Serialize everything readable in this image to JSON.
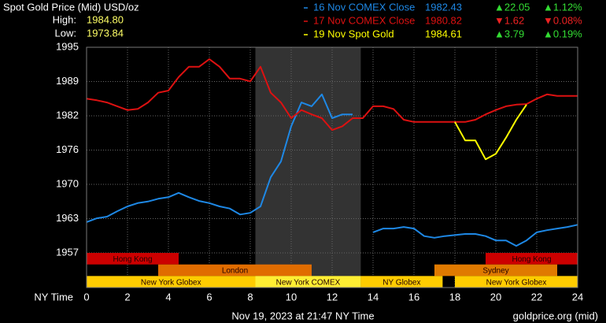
{
  "chart_data": {
    "type": "line",
    "title": "Spot Gold Price (Mid) USD/oz",
    "high_label": "High:",
    "high": "1984.80",
    "low_label": "Low:",
    "low": "1973.84",
    "x_label": "NY Time",
    "footer": "Nov 19, 2023 at 21:47 NY Time",
    "source": "goldprice.org (mid)",
    "xlim": [
      0,
      24
    ],
    "xticks": [
      0,
      2,
      4,
      6,
      8,
      10,
      12,
      14,
      16,
      18,
      20,
      22,
      24
    ],
    "ylim": [
      1950.6,
      1995
    ],
    "yticks": [
      1957,
      {
        "value": 1963.33,
        "label": "1963"
      },
      {
        "value": 1969.67,
        "label": "1970"
      },
      1976,
      {
        "value": 1982.33,
        "label": "1982"
      },
      {
        "value": 1988.67,
        "label": "1989"
      },
      1995
    ],
    "grid": true,
    "x": [
      0,
      0.5,
      1,
      1.5,
      2,
      2.5,
      3,
      3.5,
      4,
      4.5,
      5,
      5.5,
      6,
      6.5,
      7,
      7.5,
      8,
      8.5,
      9,
      9.5,
      10,
      10.5,
      11,
      11.5,
      12,
      12.5,
      13,
      13.5,
      14,
      14.5,
      15,
      15.5,
      16,
      16.5,
      17,
      17.5,
      18,
      18.5,
      19,
      19.5,
      20,
      20.5,
      21,
      21.5,
      22,
      22.5,
      23,
      23.5,
      24
    ],
    "shade": {
      "start": 8.25,
      "end": 13.4,
      "color": "#333333"
    },
    "series": [
      {
        "name": "16 Nov COMEX Close",
        "color": "#1e88e5",
        "price": "1982.43",
        "change": {
          "text": "▲22.05",
          "color": "#33dd33"
        },
        "change_pct": {
          "text": "▲1.12%",
          "color": "#33dd33"
        },
        "values": [
          1962.7,
          1963.4,
          1963.7,
          1964.7,
          1965.6,
          1966.2,
          1966.5,
          1967.0,
          1967.3,
          1968.1,
          1967.3,
          1966.6,
          1966.2,
          1965.6,
          1965.2,
          1964.1,
          1964.4,
          1965.6,
          1971.0,
          1973.9,
          1980.4,
          1984.8,
          1984.1,
          1986.3,
          1981.9,
          1982.6,
          1982.6,
          null,
          1960.8,
          1961.5,
          1961.5,
          1961.8,
          1961.5,
          1960.1,
          1959.8,
          1960.1,
          1960.3,
          1960.5,
          1960.5,
          1960.1,
          1959.3,
          1959.3,
          1958.3,
          1959.3,
          1960.8,
          1961.2,
          1961.5,
          1961.8,
          1962.2
        ]
      },
      {
        "name": "17 Nov COMEX Close",
        "color": "#dd1111",
        "price": "1980.82",
        "change": {
          "text": "▼1.62",
          "color": "#ee2222"
        },
        "change_pct": {
          "text": "▼0.08%",
          "color": "#ee2222"
        },
        "values": [
          1985.5,
          1985.2,
          1984.8,
          1984.1,
          1983.4,
          1983.6,
          1984.8,
          1986.6,
          1987.0,
          1989.5,
          1991.4,
          1991.4,
          1992.8,
          1991.4,
          1989.2,
          1989.2,
          1988.7,
          1991.4,
          1986.6,
          1984.8,
          1981.9,
          1983.4,
          1982.6,
          1981.9,
          1979.7,
          1980.4,
          1981.9,
          1981.9,
          1984.1,
          1984.1,
          1983.6,
          1981.6,
          1981.2,
          1981.2,
          1981.2,
          1981.2,
          1981.2,
          1981.2,
          1981.6,
          1982.6,
          1983.4,
          1984.1,
          1984.4,
          1984.5,
          1985.5,
          1986.3,
          1986.0,
          1986.0,
          1986.0
        ]
      },
      {
        "name": "19 Nov Spot Gold",
        "color": "#ffff00",
        "price": "1984.61",
        "change": {
          "text": "▲3.79",
          "color": "#33dd33"
        },
        "change_pct": {
          "text": "▲0.19%",
          "color": "#33dd33"
        },
        "values": [
          null,
          null,
          null,
          null,
          null,
          null,
          null,
          null,
          null,
          null,
          null,
          null,
          null,
          null,
          null,
          null,
          null,
          null,
          null,
          null,
          null,
          null,
          null,
          null,
          null,
          null,
          null,
          null,
          null,
          null,
          null,
          null,
          null,
          null,
          null,
          null,
          1981.2,
          1977.8,
          1977.8,
          1974.3,
          1975.3,
          1978.3,
          1981.6,
          1984.4,
          null,
          null,
          null,
          null,
          null
        ]
      }
    ],
    "session_rows": [
      [
        {
          "label": "Hong Kong",
          "start": 0,
          "end": 4.5,
          "color": "#cc0000"
        },
        {
          "label": "Hong Kong",
          "start": 19.5,
          "end": 24,
          "color": "#cc0000"
        }
      ],
      [
        {
          "label": "London",
          "start": 3.5,
          "end": 11,
          "color": "#e06c00"
        },
        {
          "label": "Sydney",
          "start": 17,
          "end": 23,
          "color": "#e07a00"
        }
      ],
      [
        {
          "label": "New York Globex",
          "start": 0,
          "end": 8.25,
          "color": "#ffcc00"
        },
        {
          "label": "New York COMEX",
          "start": 8.25,
          "end": 13.4,
          "color": "#ffee33"
        },
        {
          "label": "NY Globex",
          "start": 13.4,
          "end": 17.4,
          "color": "#ffcc00"
        },
        {
          "label": "New York Globex",
          "start": 18,
          "end": 24,
          "color": "#ffcc00"
        }
      ]
    ]
  }
}
